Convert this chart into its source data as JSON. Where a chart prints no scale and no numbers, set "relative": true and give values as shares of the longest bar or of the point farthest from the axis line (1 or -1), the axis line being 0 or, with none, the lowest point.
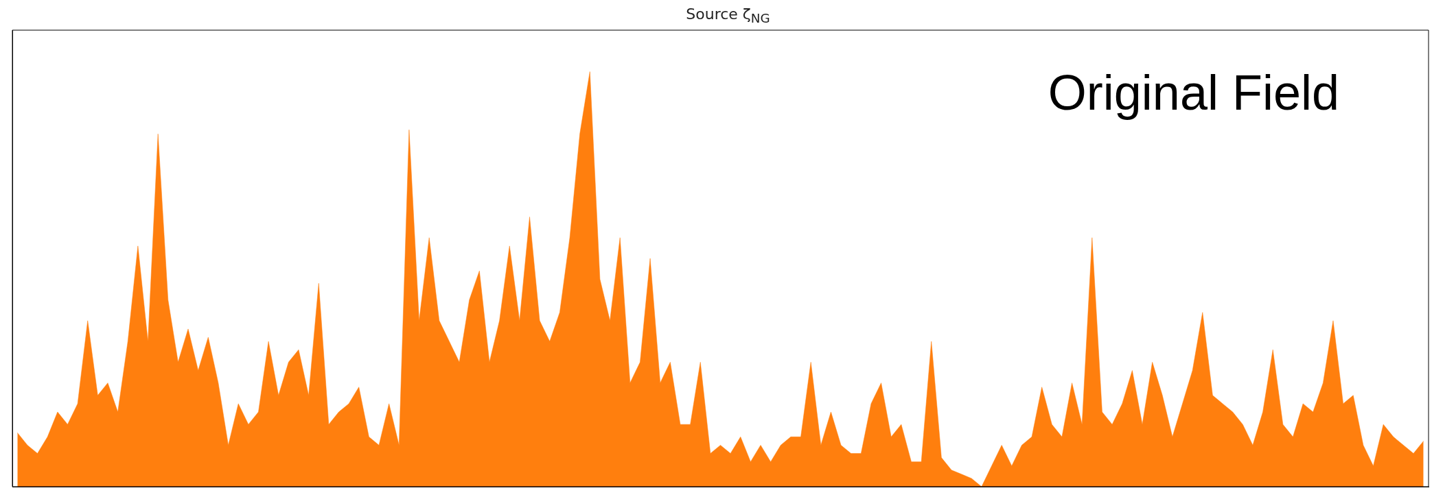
{
  "chart_data": {
    "type": "area",
    "title": "Source ζ$_{NG}$",
    "annotations": [
      "Original Field"
    ],
    "relative": true,
    "tick_labels": false,
    "color": "#ff7f0e",
    "categories": [
      null,
      null,
      null,
      null,
      null,
      null,
      null,
      null,
      null,
      null,
      null,
      null,
      null,
      null,
      null,
      null,
      null,
      null,
      null,
      null,
      null,
      null,
      null,
      null,
      null,
      null,
      null,
      null,
      null,
      null,
      null,
      null,
      null,
      null,
      null,
      null,
      null,
      null,
      null,
      null,
      null,
      null,
      null,
      null,
      null,
      null,
      null,
      null,
      null,
      null,
      null,
      null,
      null,
      null,
      null,
      null,
      null,
      null,
      null,
      null,
      null,
      null,
      null,
      null,
      null,
      null,
      null,
      null,
      null,
      null,
      null,
      null,
      null,
      null,
      null,
      null,
      null,
      null,
      null,
      null,
      null,
      null,
      null,
      null,
      null,
      null,
      null,
      null,
      null,
      null,
      null,
      null,
      null,
      null,
      null,
      null,
      null,
      null,
      null,
      null,
      null,
      null,
      null,
      null,
      null,
      null,
      null,
      null,
      null,
      null,
      null,
      null,
      null,
      null,
      null,
      null,
      null,
      null,
      null,
      null,
      null,
      null,
      null,
      null,
      null,
      null,
      null,
      null,
      null,
      null,
      null,
      null,
      null,
      null,
      null,
      null,
      null,
      null,
      null,
      null,
      null
    ],
    "values": [
      0.13,
      0.1,
      0.08,
      0.12,
      0.18,
      0.15,
      0.2,
      0.4,
      0.22,
      0.25,
      0.18,
      0.35,
      0.58,
      0.35,
      0.85,
      0.45,
      0.3,
      0.38,
      0.28,
      0.36,
      0.25,
      0.1,
      0.2,
      0.15,
      0.18,
      0.35,
      0.22,
      0.3,
      0.33,
      0.22,
      0.49,
      0.15,
      0.18,
      0.2,
      0.24,
      0.12,
      0.1,
      0.2,
      0.1,
      0.86,
      0.4,
      0.6,
      0.4,
      0.35,
      0.3,
      0.45,
      0.52,
      0.3,
      0.4,
      0.58,
      0.4,
      0.65,
      0.4,
      0.35,
      0.42,
      0.6,
      0.85,
      1.0,
      0.5,
      0.4,
      0.6,
      0.25,
      0.3,
      0.55,
      0.25,
      0.3,
      0.15,
      0.15,
      0.3,
      0.08,
      0.1,
      0.08,
      0.12,
      0.06,
      0.1,
      0.06,
      0.1,
      0.12,
      0.12,
      0.3,
      0.1,
      0.18,
      0.1,
      0.08,
      0.08,
      0.2,
      0.25,
      0.12,
      0.15,
      0.06,
      0.06,
      0.35,
      0.07,
      0.04,
      0.03,
      0.02,
      0,
      0.05,
      0.1,
      0.05,
      0.1,
      0.12,
      0.24,
      0.15,
      0.12,
      0.25,
      0.15,
      0.6,
      0.18,
      0.15,
      0.2,
      0.28,
      0.15,
      0.3,
      0.22,
      0.12,
      0.2,
      0.28,
      0.42,
      0.22,
      0.2,
      0.18,
      0.15,
      0.1,
      0.18,
      0.33,
      0.15,
      0.12,
      0.2,
      0.18,
      0.25,
      0.4,
      0.2,
      0.22,
      0.1,
      0.05,
      0.15,
      0.12,
      0.1,
      0.08,
      0.11
    ]
  }
}
